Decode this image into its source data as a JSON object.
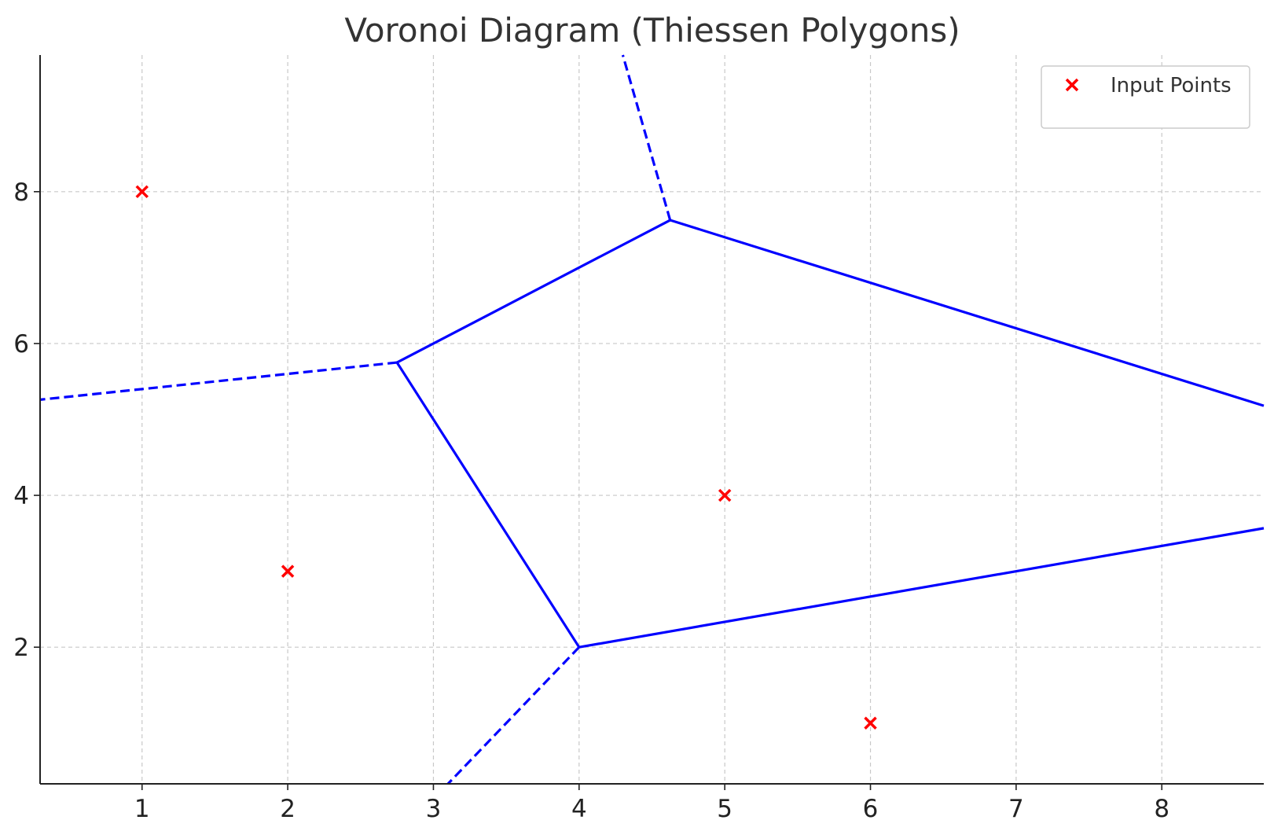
{
  "chart_data": {
    "type": "scatter",
    "title": "Voronoi Diagram (Thiessen Polygons)",
    "xlabel": "",
    "ylabel": "",
    "xlim": [
      0.3,
      8.7
    ],
    "ylim": [
      0.2,
      9.8
    ],
    "xticks": [
      1,
      2,
      3,
      4,
      5,
      6,
      7,
      8
    ],
    "yticks": [
      2,
      4,
      6,
      8
    ],
    "grid": true,
    "legend": {
      "position": "top-right",
      "entries": [
        "Input Points"
      ]
    },
    "series": [
      {
        "name": "Input Points",
        "marker": "x",
        "color": "#ff0000",
        "points": [
          [
            1,
            8
          ],
          [
            2,
            3
          ],
          [
            5,
            4
          ],
          [
            6,
            1
          ],
          [
            8,
            9
          ]
        ]
      }
    ],
    "voronoi": {
      "color": "#0000ff",
      "vertices": [
        [
          2.75,
          5.75
        ],
        [
          4.0,
          2.0
        ],
        [
          4.625,
          7.625
        ]
      ],
      "finite_edges": [
        [
          [
            2.75,
            5.75
          ],
          [
            4.625,
            7.625
          ]
        ],
        [
          [
            2.75,
            5.75
          ],
          [
            4.0,
            2.0
          ]
        ]
      ],
      "ridge_edges": [
        [
          [
            4.625,
            7.625
          ],
          [
            8.7,
            5.18
          ]
        ],
        [
          [
            4.0,
            2.0
          ],
          [
            8.7,
            3.567
          ]
        ]
      ],
      "infinite_edges": [
        [
          [
            4.625,
            7.625
          ],
          [
            4.3,
            9.8
          ]
        ],
        [
          [
            2.75,
            5.75
          ],
          [
            0.3,
            5.26
          ]
        ],
        [
          [
            4.0,
            2.0
          ],
          [
            3.1,
            0.2
          ]
        ]
      ]
    }
  }
}
